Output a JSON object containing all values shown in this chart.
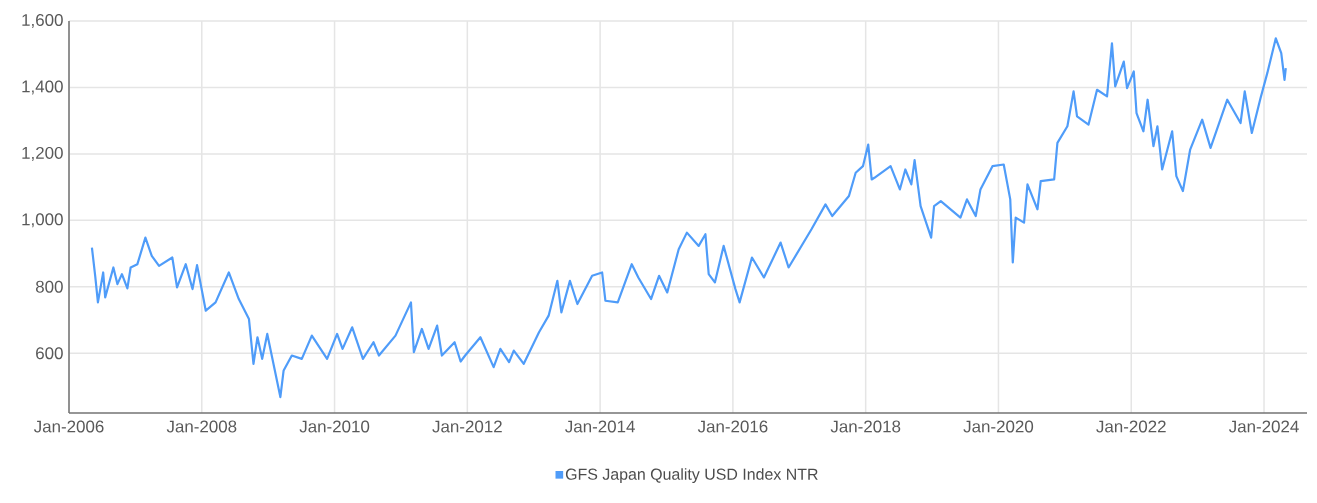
{
  "chart_data": {
    "type": "line",
    "x": [
      "2006-05-07",
      "2006-05-25",
      "2006-06-09",
      "2006-07-08",
      "2006-07-19",
      "2006-09-02",
      "2006-09-24",
      "2006-10-19",
      "2006-11-18",
      "2006-12-06",
      "2007-01-12",
      "2007-02-25",
      "2007-04-01",
      "2007-05-11",
      "2007-07-23",
      "2007-08-18",
      "2007-10-05",
      "2007-11-11",
      "2007-12-06",
      "2008-01-23",
      "2008-03-17",
      "2008-05-29",
      "2008-07-23",
      "2008-09-17",
      "2008-10-12",
      "2008-11-03",
      "2008-11-29",
      "2008-12-27",
      "2009-03-09",
      "2009-03-27",
      "2009-05-11",
      "2009-07-05",
      "2009-08-29",
      "2009-11-21",
      "2010-01-15",
      "2010-02-14",
      "2010-04-08",
      "2010-06-06",
      "2010-08-03",
      "2010-09-02",
      "2010-12-02",
      "2011-02-25",
      "2011-03-13",
      "2011-04-26",
      "2011-06-02",
      "2011-07-19",
      "2011-08-14",
      "2011-10-23",
      "2011-11-25",
      "2011-12-20",
      "2012-03-13",
      "2012-05-25",
      "2012-07-01",
      "2012-08-18",
      "2012-09-13",
      "2012-11-07",
      "2013-01-30",
      "2013-03-24",
      "2013-05-11",
      "2013-06-02",
      "2013-07-19",
      "2013-08-29",
      "2013-11-18",
      "2014-01-12",
      "2014-01-30",
      "2014-04-08",
      "2014-06-24",
      "2014-07-30",
      "2014-10-08",
      "2014-11-21",
      "2015-01-05",
      "2015-03-09",
      "2015-04-23",
      "2015-06-27",
      "2015-08-03",
      "2015-08-21",
      "2015-09-24",
      "2015-11-11",
      "2016-01-15",
      "2016-02-07",
      "2016-04-15",
      "2016-06-20",
      "2016-09-20",
      "2016-11-03",
      "2017-03-09",
      "2017-05-25",
      "2017-07-01",
      "2017-10-01",
      "2017-11-07",
      "2017-12-17",
      "2018-01-15",
      "2018-02-03",
      "2018-02-18",
      "2018-05-18",
      "2018-07-08",
      "2018-08-07",
      "2018-09-09",
      "2018-09-27",
      "2018-10-30",
      "2018-12-27",
      "2019-01-12",
      "2019-02-18",
      "2019-06-06",
      "2019-07-12",
      "2019-08-29",
      "2019-09-24",
      "2019-11-29",
      "2020-01-30",
      "2020-03-06",
      "2020-03-20",
      "2020-04-05",
      "2020-05-21",
      "2020-06-09",
      "2020-08-03",
      "2020-08-21",
      "2020-11-03",
      "2020-11-21",
      "2021-01-15",
      "2021-02-18",
      "2021-03-09",
      "2021-05-11",
      "2021-06-27",
      "2021-08-21",
      "2021-09-17",
      "2021-10-05",
      "2021-11-21",
      "2021-12-09",
      "2022-01-15",
      "2022-01-30",
      "2022-03-09",
      "2022-04-01",
      "2022-05-03",
      "2022-05-25",
      "2022-06-20",
      "2022-08-14",
      "2022-09-06",
      "2022-10-12",
      "2022-11-21",
      "2023-01-26",
      "2023-03-13",
      "2023-06-13",
      "2023-08-25",
      "2023-09-17",
      "2023-10-26",
      "2023-12-13",
      "2024-01-19",
      "2024-03-06",
      "2024-04-05",
      "2024-04-23",
      "2024-04-30"
    ],
    "series": [
      {
        "name": "GFS Japan Quality USD Index NTR",
        "color": "#4f9cf9",
        "values": [
          918,
          833,
          753,
          843,
          768,
          858,
          808,
          838,
          795,
          858,
          868,
          948,
          893,
          863,
          888,
          798,
          868,
          793,
          865,
          728,
          753,
          843,
          763,
          703,
          568,
          648,
          583,
          658,
          468,
          548,
          593,
          583,
          653,
          583,
          658,
          613,
          678,
          583,
          633,
          593,
          653,
          753,
          603,
          673,
          613,
          683,
          593,
          633,
          575,
          593,
          648,
          558,
          613,
          573,
          608,
          568,
          663,
          713,
          818,
          723,
          818,
          748,
          833,
          843,
          758,
          753,
          868,
          828,
          763,
          833,
          783,
          913,
          963,
          923,
          958,
          838,
          813,
          923,
          793,
          753,
          888,
          828,
          933,
          858,
          973,
          1048,
          1013,
          1073,
          1143,
          1163,
          1228,
          1123,
          1128,
          1163,
          1093,
          1153,
          1108,
          1181,
          1043,
          948,
          1043,
          1058,
          1008,
          1063,
          1013,
          1093,
          1163,
          1168,
          1063,
          873,
          1008,
          993,
          1108,
          1033,
          1118,
          1123,
          1233,
          1283,
          1388,
          1313,
          1288,
          1393,
          1373,
          1533,
          1403,
          1478,
          1398,
          1448,
          1323,
          1268,
          1363,
          1223,
          1283,
          1153,
          1268,
          1133,
          1088,
          1213,
          1303,
          1218,
          1363,
          1293,
          1388,
          1263,
          1368,
          1443,
          1548,
          1503,
          1423,
          1458
        ]
      }
    ],
    "xlim": [
      "2006-01-01",
      "2024-08-25"
    ],
    "ylim": [
      420,
      1600
    ],
    "xticks": [
      {
        "value": "2006-01-01",
        "label": "Jan-2006"
      },
      {
        "value": "2008-01-01",
        "label": "Jan-2008"
      },
      {
        "value": "2010-01-01",
        "label": "Jan-2010"
      },
      {
        "value": "2012-01-01",
        "label": "Jan-2012"
      },
      {
        "value": "2014-01-01",
        "label": "Jan-2014"
      },
      {
        "value": "2016-01-01",
        "label": "Jan-2016"
      },
      {
        "value": "2018-01-01",
        "label": "Jan-2018"
      },
      {
        "value": "2020-01-01",
        "label": "Jan-2020"
      },
      {
        "value": "2022-01-01",
        "label": "Jan-2022"
      },
      {
        "value": "2024-01-01",
        "label": "Jan-2024"
      }
    ],
    "yticks": [
      600,
      {
        "value": 800,
        "label": "800"
      },
      {
        "value": 1000,
        "label": "1,000"
      },
      {
        "value": 1200,
        "label": "1,200"
      },
      {
        "value": 1400,
        "label": "1,400"
      },
      {
        "value": 1600,
        "label": "1,600"
      }
    ],
    "grid": true,
    "legend": "bottom",
    "line_style": "solid"
  }
}
